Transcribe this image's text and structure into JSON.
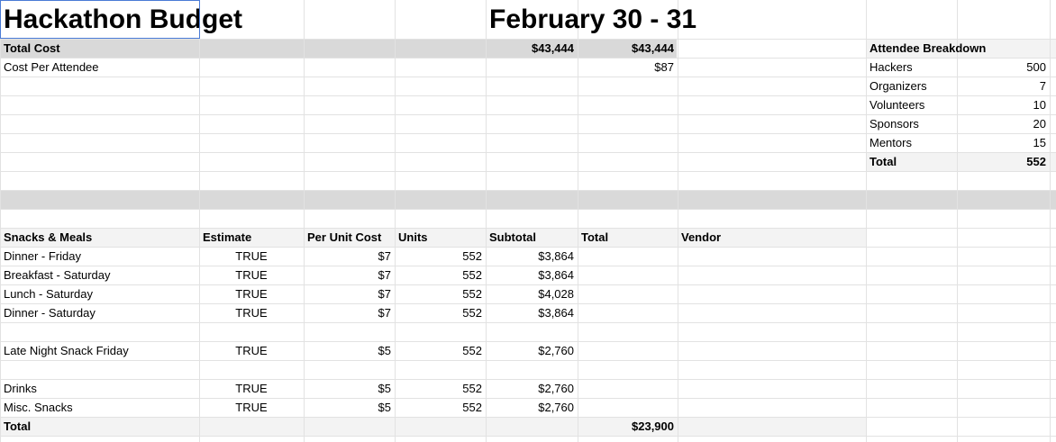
{
  "title": "Hackathon Budget",
  "dates": "February 30 - 31",
  "summary": {
    "total_cost_label": "Total Cost",
    "total_cost_a": "$43,444",
    "total_cost_b": "$43,444",
    "per_attendee_label": "Cost Per Attendee",
    "per_attendee_value": "$87"
  },
  "attendees": {
    "header": "Attendee Breakdown",
    "rows": [
      {
        "label": "Hackers",
        "value": "500"
      },
      {
        "label": "Organizers",
        "value": "7"
      },
      {
        "label": "Volunteers",
        "value": "10"
      },
      {
        "label": "Sponsors",
        "value": "20"
      },
      {
        "label": "Mentors",
        "value": "15"
      },
      {
        "label": "Total",
        "value": "552"
      }
    ]
  },
  "snacks": {
    "headers": {
      "section": "Snacks & Meals",
      "estimate": "Estimate",
      "per_unit": "Per Unit Cost",
      "units": "Units",
      "subtotal": "Subtotal",
      "total": "Total",
      "vendor": "Vendor"
    },
    "rows": [
      {
        "item": "Dinner - Friday",
        "estimate": "TRUE",
        "per_unit": "$7",
        "units": "552",
        "subtotal": "$3,864"
      },
      {
        "item": "Breakfast - Saturday",
        "estimate": "TRUE",
        "per_unit": "$7",
        "units": "552",
        "subtotal": "$3,864"
      },
      {
        "item": "Lunch - Saturday",
        "estimate": "TRUE",
        "per_unit": "$7",
        "units": "552",
        "subtotal": "$4,028"
      },
      {
        "item": "Dinner - Saturday",
        "estimate": "TRUE",
        "per_unit": "$7",
        "units": "552",
        "subtotal": "$3,864"
      },
      {
        "item": "Late Night Snack Friday",
        "estimate": "TRUE",
        "per_unit": "$5",
        "units": "552",
        "subtotal": "$2,760"
      },
      {
        "item": "Drinks",
        "estimate": "TRUE",
        "per_unit": "$5",
        "units": "552",
        "subtotal": "$2,760"
      },
      {
        "item": "Misc. Snacks",
        "estimate": "TRUE",
        "per_unit": "$5",
        "units": "552",
        "subtotal": "$2,760"
      }
    ],
    "total_label": "Total",
    "total_value": "$23,900"
  },
  "colors": {
    "header_band": "#d9d9d9",
    "light_band": "#f3f3f3",
    "gridline": "#e2e2e2",
    "selection": "#4a7bd6"
  }
}
